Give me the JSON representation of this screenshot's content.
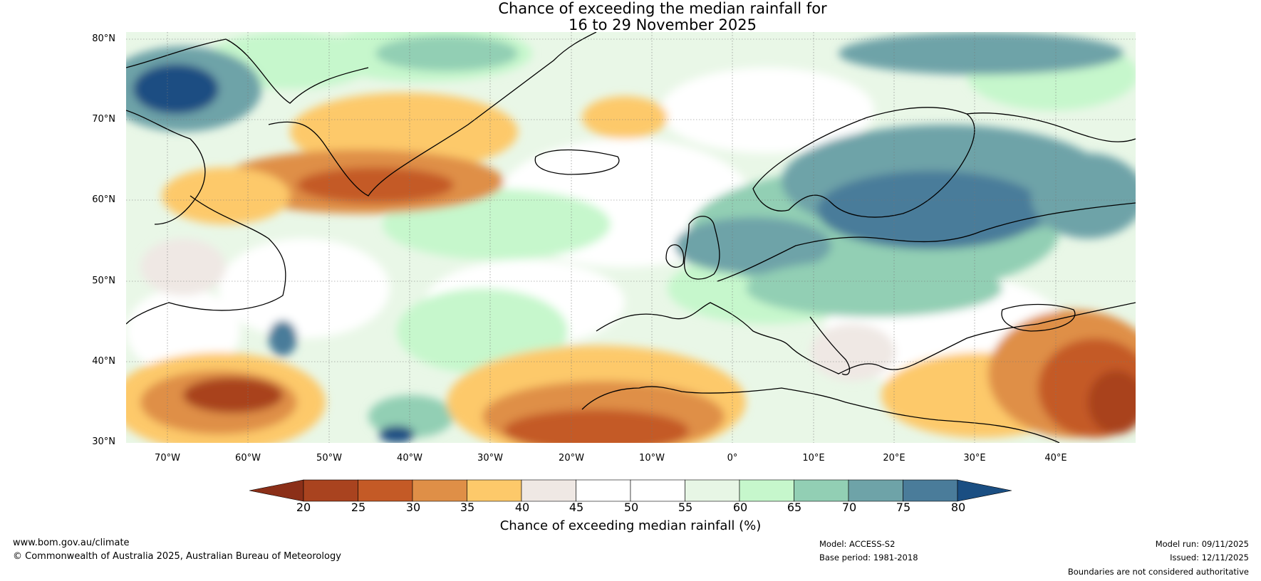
{
  "title": {
    "line1": "Chance of exceeding the median rainfall for",
    "line2": "16 to 29 November 2025"
  },
  "map": {
    "latitude_labels": [
      "80°N",
      "70°N",
      "60°N",
      "50°N",
      "40°N",
      "30°N"
    ],
    "longitude_labels": [
      "70°W",
      "60°W",
      "50°W",
      "40°W",
      "30°W",
      "20°W",
      "10°W",
      "0°",
      "10°E",
      "20°E",
      "30°E",
      "40°E"
    ]
  },
  "colorbar": {
    "ticks": [
      "20",
      "25",
      "30",
      "35",
      "40",
      "45",
      "50",
      "55",
      "60",
      "65",
      "70",
      "75",
      "80"
    ],
    "colors": [
      "#8b2f18",
      "#a9431f",
      "#c45a26",
      "#df8f47",
      "#fdc96a",
      "#efe8e4",
      "#ffffff",
      "#ffffff",
      "#e7f6e5",
      "#c6f7cc",
      "#92cfb4",
      "#6ea3a8",
      "#4a7c9a",
      "#1a4e82"
    ],
    "label": "Chance of exceeding median rainfall (%)"
  },
  "footer": {
    "website": "www.bom.gov.au/climate",
    "copyright": "© Commonwealth of Australia 2025, Australian Bureau of Meteorology",
    "model": "Model: ACCESS-S2",
    "base_period": "Base period: 1981-2018",
    "model_run": "Model run: 09/11/2025",
    "issued": "Issued: 12/11/2025",
    "disclaimer": "Boundaries are not considered authoritative"
  }
}
